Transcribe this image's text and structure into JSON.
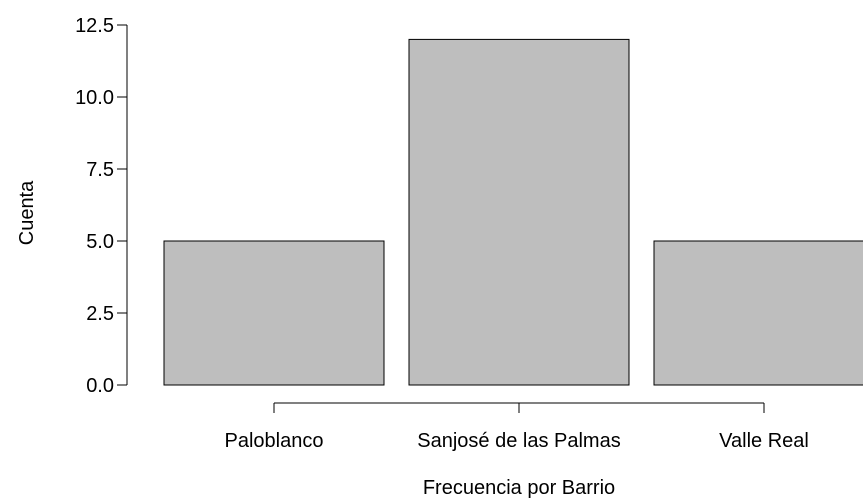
{
  "chart_data": {
    "type": "bar",
    "categories": [
      "Paloblanco",
      "Sanjosé de las Palmas",
      "Valle Real"
    ],
    "values": [
      5,
      12,
      5
    ],
    "xlabel": "Frecuencia por Barrio",
    "ylabel": "Cuenta",
    "ylim": [
      0,
      12.5
    ],
    "yticks": [
      "0.0",
      "2.5",
      "5.0",
      "7.5",
      "10.0",
      "12.5"
    ],
    "grid": false,
    "legend": "none",
    "colors": {
      "bar_fill": "#bebebe",
      "bar_stroke": "#000000",
      "axis": "#000000"
    }
  }
}
